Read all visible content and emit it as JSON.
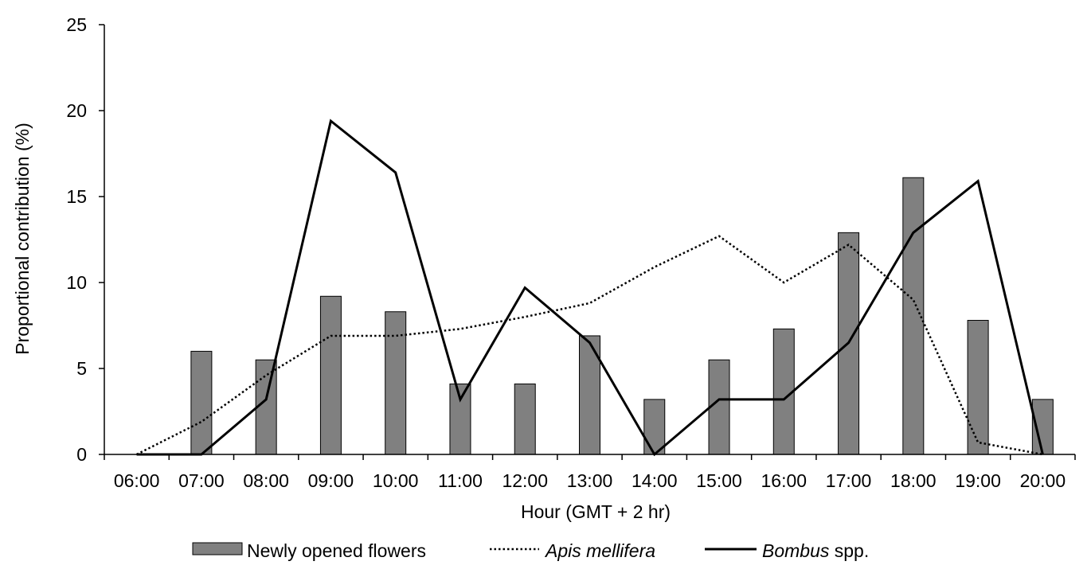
{
  "chart_data": {
    "type": "bar",
    "title": "",
    "xlabel": "Hour (GMT + 2 hr)",
    "ylabel": "Proportional contribution (%)",
    "ylim": [
      0,
      25
    ],
    "yticks": [
      "0",
      "5",
      "10",
      "15",
      "20",
      "25"
    ],
    "grid": false,
    "legend_position": "bottom",
    "categories": [
      "06:00",
      "07:00",
      "08:00",
      "09:00",
      "10:00",
      "11:00",
      "12:00",
      "13:00",
      "14:00",
      "15:00",
      "16:00",
      "17:00",
      "18:00",
      "19:00",
      "20:00"
    ],
    "series": [
      {
        "name": "Newly opened flowers",
        "type": "bar",
        "color": "#808080",
        "values": [
          null,
          6.0,
          5.5,
          9.2,
          8.3,
          4.1,
          4.1,
          6.9,
          3.2,
          5.5,
          7.3,
          12.9,
          16.1,
          7.8,
          3.2
        ]
      },
      {
        "name": "Apis mellifera",
        "type": "line",
        "style": "dotted",
        "color": "#000000",
        "values": [
          0,
          1.9,
          4.6,
          6.9,
          6.9,
          7.3,
          8.0,
          8.8,
          10.9,
          12.7,
          10.0,
          12.2,
          9.0,
          0.7,
          0
        ]
      },
      {
        "name": "Bombus spp.",
        "type": "line",
        "style": "solid",
        "color": "#000000",
        "values": [
          0,
          0,
          3.2,
          19.4,
          16.4,
          3.2,
          9.7,
          6.5,
          0,
          3.2,
          3.2,
          6.5,
          12.9,
          15.9,
          0
        ]
      }
    ]
  },
  "legend": {
    "bar_label": "Newly opened flowers",
    "apis_genus": "Apis mellifera",
    "bombus_genus": "Bombus",
    "bombus_suffix": " spp."
  }
}
